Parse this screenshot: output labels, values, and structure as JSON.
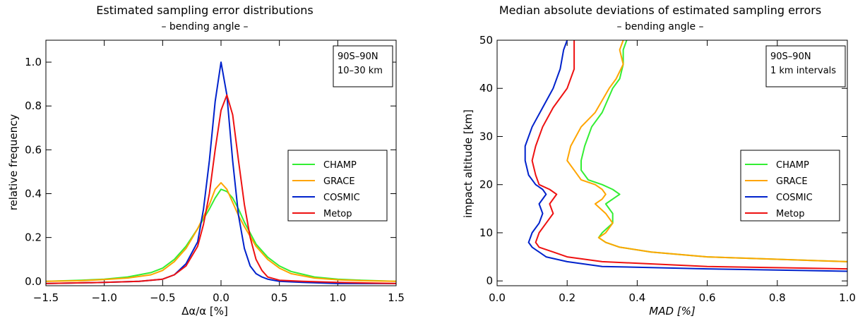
{
  "colors": {
    "CHAMP": "#33ee33",
    "GRACE": "#ffa500",
    "COSMIC": "#0022cc",
    "Metop": "#ee1111"
  },
  "chart_data": [
    {
      "type": "line",
      "title": "Estimated sampling error distributions",
      "subtitle": "– bending angle –",
      "xlabel": "Δα/α [%]",
      "ylabel": "relative frequency",
      "xlim": [
        -1.5,
        1.5
      ],
      "ylim": [
        -0.02,
        1.1
      ],
      "xticks": [
        -1.5,
        -1.0,
        -0.5,
        0.0,
        0.5,
        1.0,
        1.5
      ],
      "xtick_labels": [
        "−1.5",
        "−1.0",
        "−0.5",
        "0.0",
        "0.5",
        "1.0",
        "1.5"
      ],
      "yticks": [
        0.0,
        0.2,
        0.4,
        0.6,
        0.8,
        1.0
      ],
      "ytick_labels": [
        "0.0",
        "0.2",
        "0.4",
        "0.6",
        "0.8",
        "1.0"
      ],
      "annotation": [
        "90S–90N",
        "10–30 km"
      ],
      "legend_position": "right",
      "series": [
        {
          "name": "CHAMP",
          "x": [
            -1.5,
            -1.2,
            -1.0,
            -0.8,
            -0.6,
            -0.5,
            -0.4,
            -0.3,
            -0.2,
            -0.1,
            -0.05,
            0.0,
            0.05,
            0.1,
            0.15,
            0.2,
            0.3,
            0.4,
            0.5,
            0.6,
            0.8,
            1.0,
            1.2,
            1.5
          ],
          "y": [
            0.0,
            0.005,
            0.01,
            0.02,
            0.04,
            0.06,
            0.1,
            0.16,
            0.24,
            0.33,
            0.38,
            0.42,
            0.41,
            0.38,
            0.33,
            0.27,
            0.17,
            0.11,
            0.07,
            0.045,
            0.02,
            0.01,
            0.005,
            0.0
          ]
        },
        {
          "name": "GRACE",
          "x": [
            -1.5,
            -1.2,
            -1.0,
            -0.8,
            -0.6,
            -0.5,
            -0.4,
            -0.3,
            -0.2,
            -0.1,
            -0.05,
            0.0,
            0.05,
            0.1,
            0.15,
            0.2,
            0.3,
            0.4,
            0.5,
            0.6,
            0.8,
            1.0,
            1.2,
            1.5
          ],
          "y": [
            0.0,
            0.003,
            0.008,
            0.015,
            0.03,
            0.05,
            0.09,
            0.15,
            0.24,
            0.35,
            0.42,
            0.45,
            0.42,
            0.36,
            0.3,
            0.25,
            0.16,
            0.1,
            0.06,
            0.035,
            0.015,
            0.007,
            0.003,
            0.0
          ]
        },
        {
          "name": "COSMIC",
          "x": [
            -1.5,
            -1.0,
            -0.7,
            -0.5,
            -0.4,
            -0.3,
            -0.2,
            -0.15,
            -0.1,
            -0.05,
            0.0,
            0.05,
            0.1,
            0.15,
            0.2,
            0.25,
            0.3,
            0.35,
            0.4,
            0.5,
            0.7,
            1.0,
            1.5
          ],
          "y": [
            -0.01,
            -0.005,
            0.0,
            0.01,
            0.03,
            0.08,
            0.18,
            0.33,
            0.55,
            0.82,
            1.0,
            0.85,
            0.55,
            0.3,
            0.15,
            0.07,
            0.035,
            0.02,
            0.01,
            0.0,
            -0.005,
            -0.01,
            -0.01
          ]
        },
        {
          "name": "Metop",
          "x": [
            -1.5,
            -1.0,
            -0.7,
            -0.5,
            -0.4,
            -0.3,
            -0.2,
            -0.15,
            -0.1,
            -0.05,
            0.0,
            0.05,
            0.1,
            0.15,
            0.2,
            0.25,
            0.3,
            0.35,
            0.4,
            0.5,
            0.7,
            1.0,
            1.5
          ],
          "y": [
            -0.01,
            -0.005,
            0.0,
            0.01,
            0.03,
            0.07,
            0.16,
            0.26,
            0.4,
            0.6,
            0.78,
            0.85,
            0.76,
            0.55,
            0.35,
            0.2,
            0.1,
            0.05,
            0.02,
            0.005,
            0.0,
            -0.005,
            -0.01
          ]
        }
      ]
    },
    {
      "type": "line",
      "title": "Median absolute deviations of estimated sampling errors",
      "subtitle": "– bending angle –",
      "xlabel": "MAD [%]",
      "ylabel": "impact altitude [km]",
      "xlim": [
        0.0,
        1.0
      ],
      "ylim": [
        -1,
        50
      ],
      "xticks": [
        0.0,
        0.2,
        0.4,
        0.6,
        0.8,
        1.0
      ],
      "xtick_labels": [
        "0.0",
        "0.2",
        "0.4",
        "0.6",
        "0.8",
        "1.0"
      ],
      "yticks": [
        0,
        10,
        20,
        30,
        40,
        50
      ],
      "ytick_labels": [
        "0",
        "10",
        "20",
        "30",
        "40",
        "50"
      ],
      "annotation": [
        "90S–90N",
        "1 km intervals"
      ],
      "legend_position": "right",
      "series": [
        {
          "name": "CHAMP",
          "x": [
            1.0,
            0.8,
            0.6,
            0.44,
            0.35,
            0.31,
            0.29,
            0.3,
            0.33,
            0.33,
            0.31,
            0.34,
            0.35,
            0.33,
            0.3,
            0.26,
            0.24,
            0.24,
            0.25,
            0.27,
            0.3,
            0.33,
            0.35,
            0.36,
            0.36,
            0.37
          ],
          "y": [
            4,
            4.5,
            5,
            6,
            7,
            8,
            9,
            10,
            12,
            14,
            16,
            17.5,
            18,
            19,
            20,
            21,
            23,
            25,
            28,
            32,
            35,
            40,
            42,
            45,
            48,
            50
          ]
        },
        {
          "name": "GRACE",
          "x": [
            1.0,
            0.8,
            0.6,
            0.44,
            0.35,
            0.31,
            0.29,
            0.31,
            0.33,
            0.31,
            0.28,
            0.3,
            0.31,
            0.3,
            0.28,
            0.24,
            0.22,
            0.2,
            0.21,
            0.24,
            0.28,
            0.32,
            0.34,
            0.36,
            0.35,
            0.36
          ],
          "y": [
            4,
            4.5,
            5,
            6,
            7,
            8,
            9,
            10,
            12,
            14,
            16,
            17,
            18,
            19,
            20,
            21,
            23,
            25,
            28,
            32,
            35,
            40,
            42,
            45,
            48,
            50
          ]
        },
        {
          "name": "COSMIC",
          "x": [
            1.0,
            0.6,
            0.3,
            0.2,
            0.14,
            0.1,
            0.09,
            0.1,
            0.12,
            0.13,
            0.12,
            0.14,
            0.13,
            0.11,
            0.09,
            0.08,
            0.08,
            0.1,
            0.13,
            0.16,
            0.18,
            0.19,
            0.2
          ],
          "y": [
            2,
            2.5,
            3,
            4,
            5,
            7,
            8,
            10,
            12,
            14,
            16,
            18,
            19,
            20,
            22,
            25,
            28,
            32,
            36,
            40,
            44,
            48,
            50
          ]
        },
        {
          "name": "Metop",
          "x": [
            1.0,
            0.6,
            0.3,
            0.2,
            0.16,
            0.12,
            0.11,
            0.12,
            0.14,
            0.16,
            0.15,
            0.17,
            0.15,
            0.12,
            0.11,
            0.1,
            0.11,
            0.13,
            0.16,
            0.2,
            0.22,
            0.22,
            0.22
          ],
          "y": [
            2.5,
            3,
            4,
            5,
            6,
            7,
            8,
            10,
            12,
            14,
            16,
            18,
            19,
            20,
            22,
            25,
            28,
            32,
            36,
            40,
            44,
            48,
            50
          ]
        }
      ]
    }
  ]
}
